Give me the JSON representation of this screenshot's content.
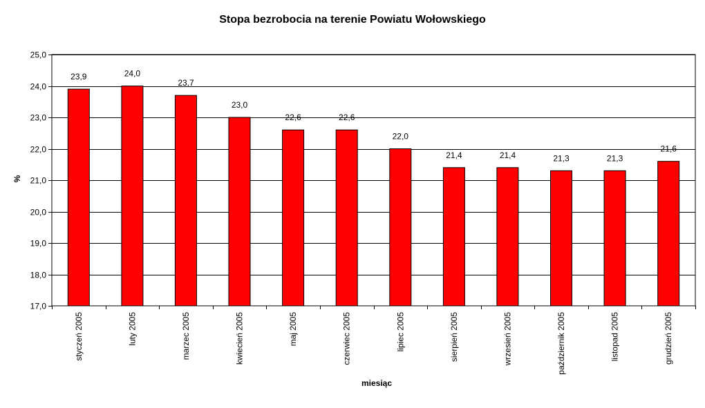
{
  "chart_data": {
    "type": "bar",
    "title": "Stopa bezrobocia na terenie Powiatu Wołowskiego",
    "xlabel": "miesiąc",
    "ylabel": "%",
    "ylim": [
      17.0,
      25.0
    ],
    "ytick_step": 1.0,
    "yticks": [
      "17,0",
      "18,0",
      "19,0",
      "20,0",
      "21,0",
      "22,0",
      "23,0",
      "24,0",
      "25,0"
    ],
    "grid": true,
    "legend": "none",
    "bar_color": "#ff0000",
    "categories": [
      "styczeń 2005",
      "luty 2005",
      "marzec 2005",
      "kwiecień 2005",
      "maj 2005",
      "czerwiec 2005",
      "lipiec 2005",
      "sierpień 2005",
      "wrzesień 2005",
      "październik 2005",
      "listopad 2005",
      "grudzień 2005"
    ],
    "values": [
      23.9,
      24.0,
      23.7,
      23.0,
      22.6,
      22.6,
      22.0,
      21.4,
      21.4,
      21.3,
      21.3,
      21.6
    ],
    "value_labels": [
      "23,9",
      "24,0",
      "23,7",
      "23,0",
      "22,6",
      "22,6",
      "22,0",
      "21,4",
      "21,4",
      "21,3",
      "21,3",
      "21,6"
    ]
  }
}
